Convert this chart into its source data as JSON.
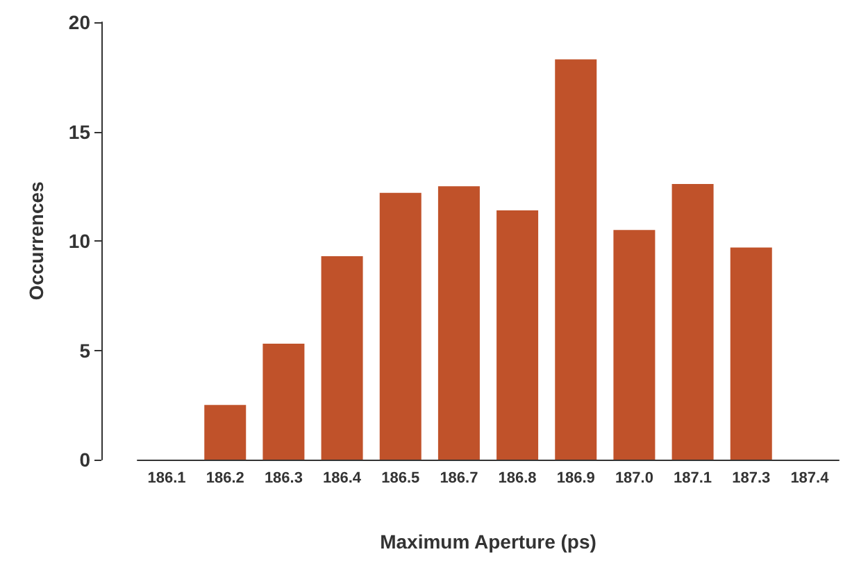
{
  "chart_data": {
    "type": "bar",
    "xlabel": "Maximum Aperture (ps)",
    "ylabel": "Occurrences",
    "categories": [
      "186.1",
      "186.2",
      "186.3",
      "186.4",
      "186.5",
      "186.7",
      "186.8",
      "186.9",
      "187.0",
      "187.1",
      "187.3",
      "187.4"
    ],
    "values": [
      null,
      2.5,
      5.3,
      9.3,
      12.2,
      12.5,
      11.4,
      18.3,
      10.5,
      12.6,
      9.7,
      null
    ],
    "color": "#c0522a",
    "ylim": [
      0,
      20
    ],
    "yticks": [
      0,
      5,
      10,
      15,
      20
    ],
    "grid": false
  }
}
